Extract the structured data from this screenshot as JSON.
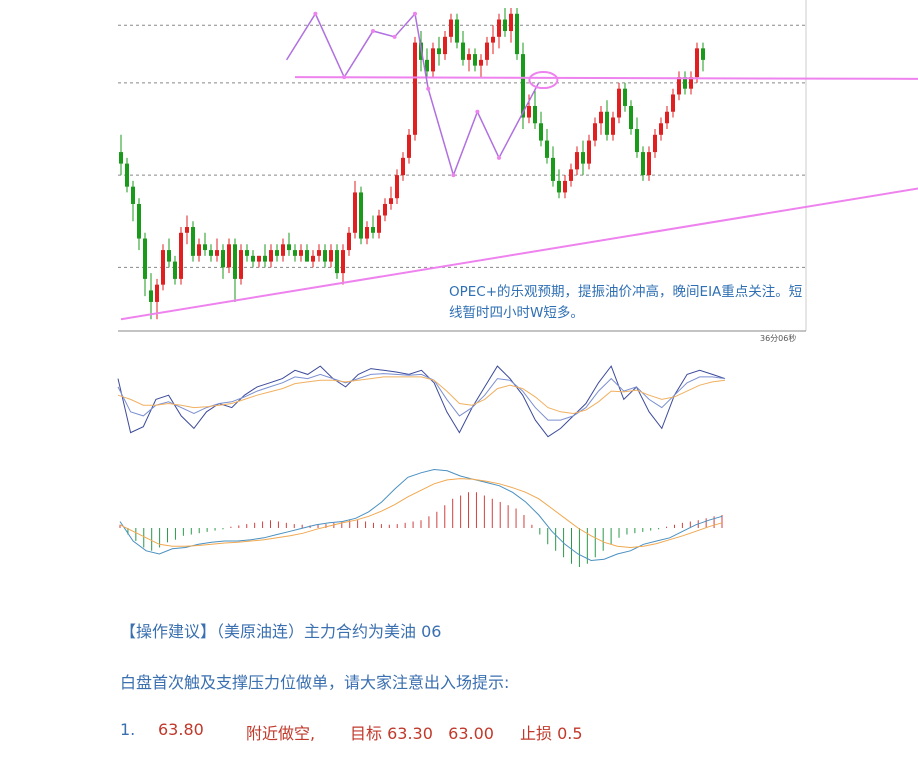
{
  "chart_data": [
    {
      "type": "candlestick",
      "title": "",
      "annotation": "OPEC+的乐观预期，提振油价冲高，晚间EIA重点关注。短线暂时四小时W短多。",
      "timer_label": "36分06秒",
      "price_range": [
        59.6,
        65.1
      ],
      "gridlines": [
        60.6,
        62.2,
        63.8,
        64.8
      ],
      "colors": {
        "up": "#e02020",
        "down": "#1a9a1a",
        "trend": "#ee82ee",
        "grid": "#888888"
      },
      "candles": [
        [
          62.6,
          62.9,
          62.2,
          62.4
        ],
        [
          62.4,
          62.5,
          61.9,
          62.0
        ],
        [
          62.0,
          62.1,
          61.4,
          61.7
        ],
        [
          61.7,
          61.8,
          60.9,
          61.1
        ],
        [
          61.1,
          61.2,
          60.1,
          60.4
        ],
        [
          60.2,
          60.5,
          59.7,
          60.0
        ],
        [
          60.0,
          60.4,
          59.7,
          60.3
        ],
        [
          60.3,
          61.0,
          60.2,
          60.9
        ],
        [
          60.9,
          61.1,
          60.6,
          60.7
        ],
        [
          60.7,
          60.8,
          60.3,
          60.4
        ],
        [
          60.4,
          61.3,
          60.3,
          61.2
        ],
        [
          61.2,
          61.5,
          61.0,
          61.3
        ],
        [
          61.3,
          61.4,
          60.7,
          60.8
        ],
        [
          60.8,
          61.1,
          60.7,
          61.0
        ],
        [
          61.0,
          61.2,
          60.8,
          60.9
        ],
        [
          60.9,
          61.0,
          60.7,
          60.8
        ],
        [
          60.8,
          61.1,
          60.7,
          60.9
        ],
        [
          60.9,
          61.0,
          60.4,
          60.6
        ],
        [
          60.6,
          61.1,
          60.5,
          61.0
        ],
        [
          61.0,
          61.1,
          60.0,
          60.4
        ],
        [
          60.4,
          61.0,
          60.3,
          60.9
        ],
        [
          60.9,
          61.0,
          60.7,
          60.8
        ],
        [
          60.8,
          60.9,
          60.6,
          60.7
        ],
        [
          60.7,
          60.8,
          60.6,
          60.8
        ],
        [
          60.8,
          61.0,
          60.6,
          60.7
        ],
        [
          60.7,
          61.0,
          60.6,
          60.9
        ],
        [
          60.9,
          61.0,
          60.7,
          60.8
        ],
        [
          60.8,
          61.1,
          60.7,
          61.0
        ],
        [
          61.0,
          61.2,
          60.8,
          60.9
        ],
        [
          60.9,
          61.0,
          60.7,
          60.8
        ],
        [
          60.8,
          61.0,
          60.7,
          60.9
        ],
        [
          60.9,
          61.0,
          60.7,
          60.7
        ],
        [
          60.7,
          60.9,
          60.6,
          60.8
        ],
        [
          60.8,
          61.0,
          60.7,
          60.9
        ],
        [
          60.9,
          61.0,
          60.6,
          60.7
        ],
        [
          60.7,
          61.0,
          60.6,
          60.9
        ],
        [
          60.9,
          61.0,
          60.4,
          60.5
        ],
        [
          60.5,
          61.0,
          60.3,
          60.9
        ],
        [
          60.9,
          61.3,
          60.8,
          61.2
        ],
        [
          61.2,
          62.1,
          61.1,
          61.9
        ],
        [
          61.9,
          62.0,
          61.0,
          61.1
        ],
        [
          61.1,
          61.4,
          61.0,
          61.3
        ],
        [
          61.3,
          61.5,
          61.1,
          61.2
        ],
        [
          61.2,
          61.6,
          61.1,
          61.5
        ],
        [
          61.5,
          61.8,
          61.4,
          61.7
        ],
        [
          61.7,
          62.0,
          61.6,
          61.8
        ],
        [
          61.8,
          62.3,
          61.7,
          62.2
        ],
        [
          62.2,
          62.6,
          62.1,
          62.5
        ],
        [
          62.5,
          63.0,
          62.4,
          62.9
        ],
        [
          62.9,
          64.6,
          62.8,
          64.5
        ],
        [
          64.5,
          64.7,
          64.0,
          64.2
        ],
        [
          64.2,
          64.4,
          63.9,
          64.0
        ],
        [
          64.0,
          64.5,
          63.9,
          64.4
        ],
        [
          64.4,
          64.6,
          64.1,
          64.3
        ],
        [
          64.3,
          64.7,
          64.2,
          64.6
        ],
        [
          64.6,
          65.0,
          64.5,
          64.9
        ],
        [
          64.9,
          65.0,
          64.4,
          64.5
        ],
        [
          64.5,
          64.7,
          64.1,
          64.2
        ],
        [
          64.2,
          64.4,
          64.0,
          64.3
        ],
        [
          64.3,
          64.4,
          64.0,
          64.1
        ],
        [
          64.1,
          64.3,
          63.9,
          64.2
        ],
        [
          64.2,
          64.6,
          64.1,
          64.5
        ],
        [
          64.5,
          64.8,
          64.3,
          64.6
        ],
        [
          64.6,
          65.0,
          64.4,
          64.9
        ],
        [
          64.9,
          65.1,
          64.6,
          64.7
        ],
        [
          64.7,
          65.1,
          64.5,
          65.0
        ],
        [
          65.0,
          65.1,
          64.2,
          64.3
        ],
        [
          64.3,
          64.5,
          63.0,
          63.2
        ],
        [
          63.2,
          63.6,
          63.1,
          63.4
        ],
        [
          63.4,
          63.7,
          63.0,
          63.1
        ],
        [
          63.1,
          63.3,
          62.7,
          62.8
        ],
        [
          62.8,
          63.0,
          62.4,
          62.5
        ],
        [
          62.5,
          62.7,
          62.0,
          62.1
        ],
        [
          62.1,
          62.3,
          61.8,
          61.9
        ],
        [
          61.9,
          62.2,
          61.8,
          62.1
        ],
        [
          62.1,
          62.4,
          62.0,
          62.3
        ],
        [
          62.3,
          62.7,
          62.2,
          62.6
        ],
        [
          62.6,
          62.8,
          62.2,
          62.4
        ],
        [
          62.4,
          62.9,
          62.3,
          62.8
        ],
        [
          62.8,
          63.2,
          62.7,
          63.1
        ],
        [
          63.1,
          63.4,
          62.9,
          63.3
        ],
        [
          63.3,
          63.5,
          62.8,
          62.9
        ],
        [
          62.9,
          63.3,
          62.8,
          63.2
        ],
        [
          63.2,
          63.8,
          63.1,
          63.7
        ],
        [
          63.7,
          63.8,
          63.3,
          63.4
        ],
        [
          63.4,
          63.5,
          62.9,
          63.0
        ],
        [
          63.0,
          63.2,
          62.5,
          62.6
        ],
        [
          62.6,
          62.7,
          62.1,
          62.2
        ],
        [
          62.2,
          62.7,
          62.1,
          62.6
        ],
        [
          62.6,
          63.0,
          62.5,
          62.9
        ],
        [
          62.9,
          63.2,
          62.8,
          63.1
        ],
        [
          63.1,
          63.4,
          63.0,
          63.3
        ],
        [
          63.3,
          63.7,
          63.2,
          63.6
        ],
        [
          63.6,
          64.0,
          63.5,
          63.9
        ],
        [
          63.9,
          64.0,
          63.6,
          63.7
        ],
        [
          63.7,
          64.0,
          63.6,
          63.9
        ],
        [
          63.9,
          64.5,
          63.8,
          64.4
        ],
        [
          64.4,
          64.5,
          64.0,
          64.2
        ]
      ],
      "annotations": [
        {
          "type": "trendline",
          "from": [
            0.0,
            59.7
          ],
          "to": [
            102.5,
            63.2
          ],
          "arrow": true
        },
        {
          "type": "trendline",
          "from": [
            14.5,
            63.9
          ],
          "to": [
            102.5,
            63.85
          ],
          "arrow": true
        },
        {
          "type": "zigzag",
          "points": [
            [
              13.8,
              64.2
            ],
            [
              16.2,
              65.0
            ],
            [
              18.6,
              63.9
            ],
            [
              21.0,
              64.7
            ],
            [
              22.8,
              64.6
            ],
            [
              24.5,
              65.0
            ],
            [
              25.6,
              63.7
            ],
            [
              27.7,
              62.2
            ],
            [
              29.7,
              63.3
            ],
            [
              31.5,
              62.5
            ],
            [
              34.8,
              63.8
            ]
          ]
        },
        {
          "type": "ellipse",
          "center": [
            35.2,
            63.85
          ]
        }
      ]
    },
    {
      "type": "line",
      "indicator": "KDJ",
      "series": [
        {
          "color": "#3b4a9a",
          "values": [
            0.8,
            0.15,
            0.22,
            0.55,
            0.6,
            0.35,
            0.2,
            0.4,
            0.5,
            0.45,
            0.6,
            0.7,
            0.75,
            0.8,
            0.9,
            0.85,
            0.95,
            0.8,
            0.7,
            0.85,
            0.92,
            0.9,
            0.88,
            0.85,
            0.9,
            0.75,
            0.4,
            0.15,
            0.45,
            0.7,
            0.95,
            0.8,
            0.6,
            0.3,
            0.1,
            0.2,
            0.35,
            0.5,
            0.75,
            0.95,
            0.55,
            0.7,
            0.4,
            0.2,
            0.6,
            0.85,
            0.9,
            0.85,
            0.8
          ]
        },
        {
          "color": "#7b8fd0",
          "values": [
            0.7,
            0.4,
            0.35,
            0.48,
            0.52,
            0.45,
            0.38,
            0.45,
            0.5,
            0.52,
            0.58,
            0.65,
            0.7,
            0.75,
            0.82,
            0.8,
            0.85,
            0.8,
            0.75,
            0.8,
            0.85,
            0.86,
            0.85,
            0.84,
            0.85,
            0.78,
            0.55,
            0.35,
            0.45,
            0.6,
            0.8,
            0.78,
            0.65,
            0.45,
            0.3,
            0.3,
            0.35,
            0.45,
            0.65,
            0.8,
            0.65,
            0.7,
            0.55,
            0.45,
            0.6,
            0.75,
            0.82,
            0.82,
            0.8
          ]
        },
        {
          "color": "#f0b060",
          "values": [
            0.6,
            0.55,
            0.48,
            0.48,
            0.5,
            0.48,
            0.45,
            0.46,
            0.48,
            0.5,
            0.55,
            0.6,
            0.64,
            0.68,
            0.74,
            0.76,
            0.78,
            0.78,
            0.76,
            0.78,
            0.8,
            0.82,
            0.82,
            0.82,
            0.82,
            0.78,
            0.65,
            0.5,
            0.48,
            0.55,
            0.68,
            0.72,
            0.68,
            0.58,
            0.45,
            0.4,
            0.38,
            0.42,
            0.52,
            0.65,
            0.64,
            0.66,
            0.6,
            0.55,
            0.58,
            0.65,
            0.72,
            0.76,
            0.78
          ]
        }
      ]
    },
    {
      "type": "bar",
      "indicator": "MACD",
      "histogram": [
        0.05,
        -0.1,
        -0.2,
        -0.3,
        -0.35,
        -0.3,
        -0.22,
        -0.18,
        -0.12,
        -0.1,
        -0.08,
        -0.06,
        -0.04,
        -0.02,
        0.02,
        0.04,
        0.06,
        0.08,
        0.1,
        0.12,
        0.1,
        0.08,
        0.06,
        0.05,
        0.04,
        0.05,
        0.06,
        0.08,
        0.1,
        0.12,
        0.12,
        0.1,
        0.08,
        0.06,
        0.05,
        0.06,
        0.08,
        0.1,
        0.12,
        0.18,
        0.25,
        0.35,
        0.45,
        0.5,
        0.55,
        0.55,
        0.5,
        0.45,
        0.4,
        0.35,
        0.3,
        0.2,
        0.05,
        -0.1,
        -0.25,
        -0.35,
        -0.45,
        -0.55,
        -0.6,
        -0.55,
        -0.45,
        -0.35,
        -0.25,
        -0.15,
        -0.1,
        -0.08,
        -0.06,
        -0.04,
        -0.02,
        0.02,
        0.05,
        0.08,
        0.1,
        0.12,
        0.15,
        0.18,
        0.2
      ],
      "dif": [
        0.1,
        -0.2,
        -0.35,
        -0.4,
        -0.32,
        -0.3,
        -0.25,
        -0.22,
        -0.2,
        -0.2,
        -0.18,
        -0.15,
        -0.1,
        -0.05,
        0.0,
        0.05,
        0.08,
        0.1,
        0.15,
        0.25,
        0.4,
        0.6,
        0.78,
        0.85,
        0.9,
        0.88,
        0.8,
        0.75,
        0.7,
        0.65,
        0.55,
        0.4,
        0.2,
        -0.05,
        -0.25,
        -0.4,
        -0.5,
        -0.48,
        -0.4,
        -0.35,
        -0.25,
        -0.2,
        -0.15,
        -0.05,
        0.05,
        0.12,
        0.18
      ],
      "dea": [
        0.05,
        -0.05,
        -0.15,
        -0.25,
        -0.28,
        -0.28,
        -0.27,
        -0.25,
        -0.23,
        -0.22,
        -0.2,
        -0.18,
        -0.15,
        -0.12,
        -0.08,
        -0.02,
        0.03,
        0.08,
        0.12,
        0.18,
        0.26,
        0.36,
        0.48,
        0.58,
        0.68,
        0.74,
        0.76,
        0.75,
        0.72,
        0.68,
        0.62,
        0.55,
        0.45,
        0.3,
        0.15,
        0.0,
        -0.12,
        -0.22,
        -0.28,
        -0.3,
        -0.28,
        -0.24,
        -0.18,
        -0.12,
        -0.05,
        0.02,
        0.08
      ]
    }
  ],
  "advice": {
    "title": "【操作建议】（美原油连）主力合约为美油 06",
    "line1": "白盘首次触及支撑压力位做单，请大家注意出入场提示:",
    "row": {
      "index": "1.",
      "price": "63.80",
      "action": "附近做空,",
      "target": "目标 63.30   63.00",
      "stop": "止损 0.5"
    }
  }
}
